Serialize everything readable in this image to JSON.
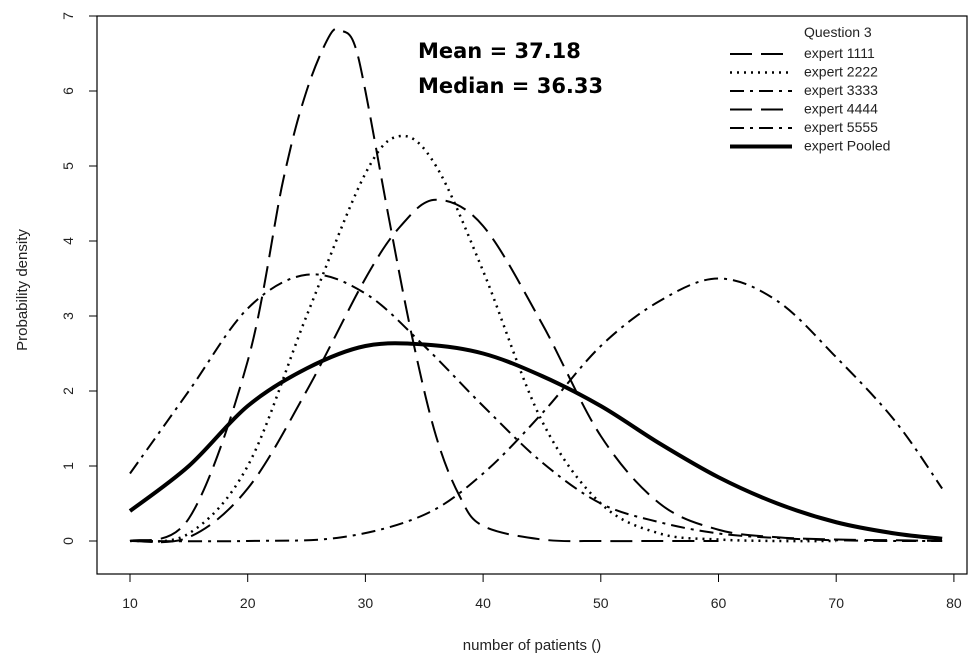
{
  "chart_data": {
    "type": "line",
    "title": "",
    "xlabel": "number of patients ()",
    "ylabel": "Probability density",
    "xlim": [
      10,
      80
    ],
    "ylim": [
      0,
      7
    ],
    "x_ticks": [
      "10",
      "20",
      "30",
      "40",
      "50",
      "60",
      "70",
      "80"
    ],
    "y_ticks": [
      "0",
      "1",
      "2",
      "3",
      "4",
      "5",
      "6",
      "7"
    ],
    "legend_title": "Question 3",
    "legend_position": "top-right",
    "grid": false,
    "annotations": [
      "Mean = 37.18",
      "Median = 36.33"
    ],
    "series": [
      {
        "name": "expert 1111",
        "style": "long-dash",
        "width": 2,
        "x": [
          10,
          15,
          20,
          23,
          25,
          27,
          28,
          29,
          30,
          32,
          34,
          36,
          38,
          40,
          45,
          50,
          55,
          60
        ],
        "y": [
          0,
          0.3,
          2.4,
          4.8,
          6.0,
          6.75,
          6.8,
          6.65,
          6.0,
          4.3,
          2.7,
          1.4,
          0.6,
          0.2,
          0.02,
          0,
          0,
          0
        ]
      },
      {
        "name": "expert 2222",
        "style": "dotted",
        "width": 2.5,
        "x": [
          10,
          15,
          20,
          25,
          30,
          33,
          36,
          40,
          45,
          50,
          55,
          60,
          65,
          70
        ],
        "y": [
          0,
          0.1,
          1.0,
          3.0,
          4.9,
          5.4,
          5.0,
          3.6,
          1.6,
          0.5,
          0.1,
          0.02,
          0,
          0
        ]
      },
      {
        "name": "expert 3333",
        "style": "dash-dot",
        "width": 2,
        "x": [
          10,
          20,
          28,
          35,
          40,
          45,
          50,
          55,
          60,
          65,
          70,
          75,
          79
        ],
        "y": [
          0,
          0,
          0.05,
          0.35,
          0.9,
          1.7,
          2.6,
          3.2,
          3.5,
          3.2,
          2.45,
          1.6,
          0.7
        ]
      },
      {
        "name": "expert 4444",
        "style": "long-dash",
        "width": 2,
        "x": [
          10,
          15,
          20,
          25,
          30,
          33,
          36,
          40,
          45,
          50,
          55,
          60,
          65,
          70,
          75,
          79
        ],
        "y": [
          0,
          0.05,
          0.7,
          2.0,
          3.5,
          4.2,
          4.55,
          4.2,
          2.9,
          1.4,
          0.5,
          0.15,
          0.05,
          0.02,
          0.01,
          0
        ]
      },
      {
        "name": "expert 5555",
        "style": "dash-dot",
        "width": 2,
        "x": [
          10,
          15,
          20,
          25,
          30,
          35,
          40,
          45,
          50,
          55,
          60,
          65,
          70,
          75,
          79
        ],
        "y": [
          0.9,
          2.0,
          3.1,
          3.55,
          3.3,
          2.6,
          1.8,
          1.05,
          0.5,
          0.25,
          0.1,
          0.04,
          0.01,
          0,
          0
        ]
      },
      {
        "name": "expert Pooled",
        "style": "solid",
        "width": 4,
        "x": [
          10,
          15,
          20,
          25,
          30,
          35,
          40,
          45,
          50,
          55,
          60,
          65,
          70,
          75,
          79
        ],
        "y": [
          0.4,
          1.0,
          1.8,
          2.3,
          2.6,
          2.62,
          2.5,
          2.2,
          1.8,
          1.3,
          0.85,
          0.5,
          0.25,
          0.1,
          0.03
        ]
      }
    ]
  }
}
